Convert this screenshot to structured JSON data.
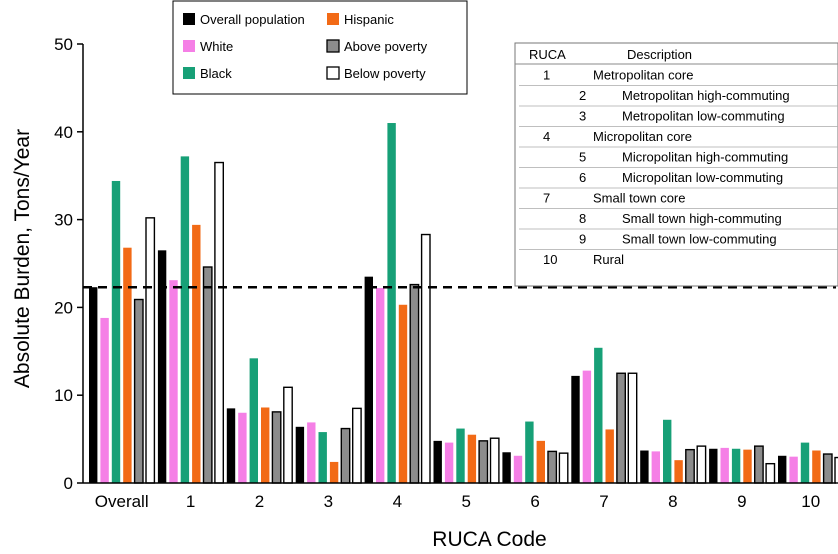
{
  "chart_data": {
    "type": "bar",
    "xlabel": "RUCA Code",
    "ylabel": "Absolute Burden, Tons/Year",
    "ylim": [
      0,
      50
    ],
    "yticks": [
      0,
      10,
      20,
      30,
      40,
      50
    ],
    "categories": [
      "Overall",
      "1",
      "2",
      "3",
      "4",
      "5",
      "6",
      "7",
      "8",
      "9",
      "10"
    ],
    "reference_line": {
      "y": 22.3,
      "style": "dashed"
    },
    "legend_position": "top-center",
    "series": [
      {
        "name": "Overall population",
        "color": "#000000",
        "values": [
          22.3,
          26.5,
          8.5,
          6.4,
          23.5,
          4.8,
          3.5,
          12.2,
          3.7,
          3.9,
          3.1
        ]
      },
      {
        "name": "White",
        "color": "#f57fe6",
        "values": [
          18.8,
          23.1,
          8.0,
          6.9,
          22.2,
          4.6,
          3.1,
          12.8,
          3.6,
          4.0,
          3.0
        ]
      },
      {
        "name": "Black",
        "color": "#17a077",
        "values": [
          34.4,
          37.2,
          14.2,
          5.8,
          41.0,
          6.2,
          7.0,
          15.4,
          7.2,
          3.9,
          4.6
        ]
      },
      {
        "name": "Hispanic",
        "color": "#f26a16",
        "values": [
          26.8,
          29.4,
          8.6,
          2.4,
          20.3,
          5.5,
          4.8,
          6.1,
          2.6,
          3.8,
          3.7
        ]
      },
      {
        "name": "Above poverty",
        "color": "#8c8c8c",
        "values": [
          20.9,
          24.6,
          8.1,
          6.2,
          22.6,
          4.8,
          3.6,
          12.5,
          3.8,
          4.2,
          3.3
        ]
      },
      {
        "name": "Below poverty",
        "color": "#ffffff",
        "values": [
          30.2,
          36.5,
          10.9,
          8.5,
          28.3,
          5.1,
          3.4,
          12.5,
          4.2,
          2.2,
          2.9
        ]
      }
    ],
    "ruca_table": {
      "header": {
        "code": "RUCA",
        "description": "Description"
      },
      "rows": [
        {
          "code": "1",
          "description": "Metropolitan core",
          "indent": false
        },
        {
          "code": "2",
          "description": "Metropolitan high-commuting",
          "indent": true
        },
        {
          "code": "3",
          "description": "Metropolitan low-commuting",
          "indent": true
        },
        {
          "code": "4",
          "description": "Micropolitan core",
          "indent": false
        },
        {
          "code": "5",
          "description": "Micropolitan high-commuting",
          "indent": true
        },
        {
          "code": "6",
          "description": "Micropolitan low-commuting",
          "indent": true
        },
        {
          "code": "7",
          "description": "Small town core",
          "indent": false
        },
        {
          "code": "8",
          "description": "Small town high-commuting",
          "indent": true
        },
        {
          "code": "9",
          "description": "Small town low-commuting",
          "indent": true
        },
        {
          "code": "10",
          "description": "Rural",
          "indent": false
        }
      ]
    }
  }
}
